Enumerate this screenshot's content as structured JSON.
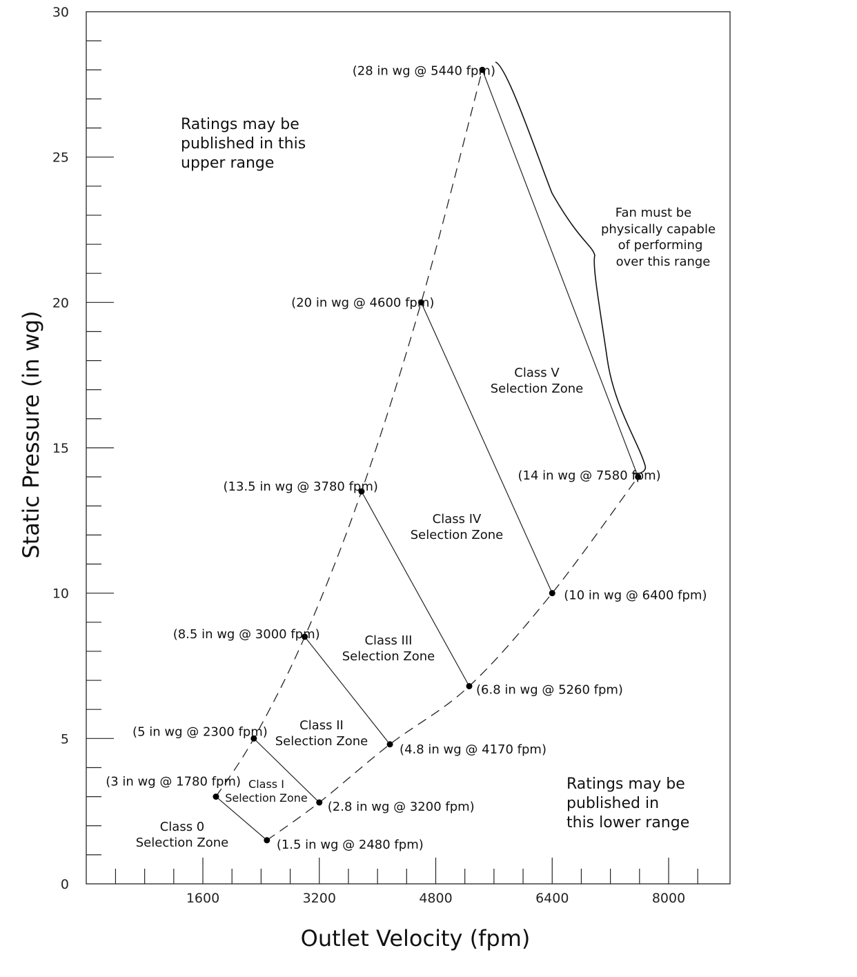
{
  "chart_data": {
    "type": "scatter",
    "xlabel": "Outlet Velocity (fpm)",
    "ylabel": "Static Pressure (in wg)",
    "xlim": [
      0,
      8800
    ],
    "ylim": [
      0,
      30
    ],
    "x_ticks": [
      1600,
      3200,
      4800,
      6400,
      8000
    ],
    "y_ticks": [
      0,
      5,
      10,
      15,
      20,
      25,
      30
    ],
    "grid": false,
    "points": [
      {
        "id": "p1",
        "x": 1780,
        "y": 3,
        "label": "(3 in wg @ 1780 fpm)"
      },
      {
        "id": "p2",
        "x": 2480,
        "y": 1.5,
        "label": "(1.5 in wg @ 2480 fpm)"
      },
      {
        "id": "p3",
        "x": 2300,
        "y": 5,
        "label": "(5 in wg @ 2300 fpm)"
      },
      {
        "id": "p4",
        "x": 3200,
        "y": 2.8,
        "label": "(2.8 in wg @ 3200 fpm)"
      },
      {
        "id": "p5",
        "x": 3000,
        "y": 8.5,
        "label": "(8.5 in wg @ 3000 fpm)"
      },
      {
        "id": "p6",
        "x": 4170,
        "y": 4.8,
        "label": "(4.8 in wg @ 4170 fpm)"
      },
      {
        "id": "p7",
        "x": 3780,
        "y": 13.5,
        "label": "(13.5  in wg @ 3780 fpm)"
      },
      {
        "id": "p8",
        "x": 5260,
        "y": 6.8,
        "label": "(6.8 in wg @ 5260 fpm)"
      },
      {
        "id": "p9",
        "x": 4600,
        "y": 20,
        "label": "(20 in wg @ 4600 fpm)"
      },
      {
        "id": "p10",
        "x": 6400,
        "y": 10,
        "label": "(10 in wg @ 6400 fpm)"
      },
      {
        "id": "p11",
        "x": 5440,
        "y": 28,
        "label": "(28 in wg @ 5440 fpm)"
      },
      {
        "id": "p12",
        "x": 7580,
        "y": 14,
        "label": "(14 in wg @ 7580 fpm)"
      }
    ],
    "zone_lines": [
      [
        "p1",
        "p2"
      ],
      [
        "p3",
        "p4"
      ],
      [
        "p5",
        "p6"
      ],
      [
        "p7",
        "p8"
      ],
      [
        "p9",
        "p10"
      ],
      [
        "p11",
        "p12"
      ]
    ],
    "upper_dashed_boundary": [
      "p1",
      "p3",
      "p5",
      "p7",
      "p9",
      "p11"
    ],
    "lower_dashed_boundary": [
      "p2",
      "p4",
      "p6",
      "p8",
      "p10",
      "p12"
    ],
    "zones": [
      {
        "id": "class0",
        "lines": [
          "Class 0",
          "Selection Zone"
        ]
      },
      {
        "id": "class1",
        "lines": [
          "Class I",
          "Selection Zone"
        ]
      },
      {
        "id": "class2",
        "lines": [
          "Class II",
          "Selection Zone"
        ]
      },
      {
        "id": "class3",
        "lines": [
          "Class III",
          "Selection Zone"
        ]
      },
      {
        "id": "class4",
        "lines": [
          "Class IV",
          "Selection Zone"
        ]
      },
      {
        "id": "class5",
        "lines": [
          "Class V",
          "Selection Zone"
        ]
      }
    ],
    "annotations": {
      "upper_range": [
        "Ratings may be",
        "published in this",
        "upper range"
      ],
      "lower_range": [
        "Ratings may be",
        "published in",
        "this lower range"
      ],
      "capability": [
        "Fan must be",
        "physically capable",
        "of performing",
        "over this range"
      ]
    }
  }
}
